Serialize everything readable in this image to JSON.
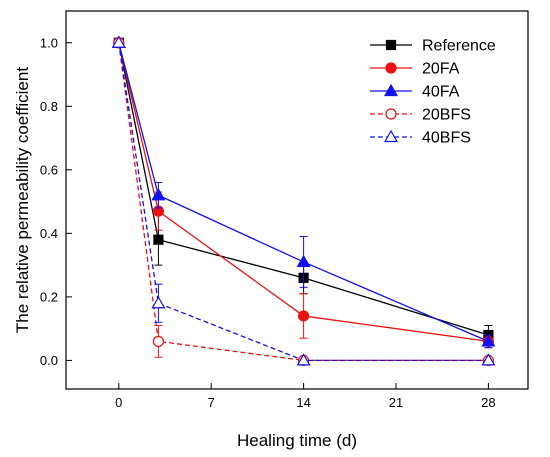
{
  "chart_data": {
    "type": "line",
    "title": "",
    "xlabel": "Healing time (d)",
    "ylabel": "The relative permeability coefficient",
    "xlim": [
      -4,
      31
    ],
    "ylim": [
      -0.09,
      1.1
    ],
    "xticks": [
      0,
      7,
      14,
      21,
      28
    ],
    "yticks": [
      0.0,
      0.2,
      0.4,
      0.6,
      0.8,
      1.0
    ],
    "grid": false,
    "legend_position": "top-right",
    "series": [
      {
        "name": "Reference",
        "color": "#000000",
        "dash": "solid",
        "marker": "square-filled",
        "x": [
          0,
          3,
          14,
          28
        ],
        "y": [
          1.0,
          0.38,
          0.26,
          0.08
        ],
        "err": [
          0,
          0.08,
          0.05,
          0.03
        ]
      },
      {
        "name": "20FA",
        "color": "#ee1111",
        "dash": "solid",
        "marker": "circle-filled",
        "x": [
          0,
          3,
          14,
          28
        ],
        "y": [
          1.0,
          0.47,
          0.14,
          0.06
        ],
        "err": [
          0,
          0.06,
          0.07,
          0.02
        ]
      },
      {
        "name": "40FA",
        "color": "#1111ee",
        "dash": "solid",
        "marker": "triangle-filled",
        "x": [
          0,
          3,
          14,
          28
        ],
        "y": [
          1.0,
          0.52,
          0.31,
          0.06
        ],
        "err": [
          0,
          0.04,
          0.08,
          0.02
        ]
      },
      {
        "name": "20BFS",
        "color": "#ee1111",
        "dash": "dashed",
        "marker": "circle-open",
        "x": [
          0,
          3,
          14,
          28
        ],
        "y": [
          1.0,
          0.06,
          0.0,
          0.0
        ],
        "err": [
          0,
          0.05,
          0,
          0
        ]
      },
      {
        "name": "40BFS",
        "color": "#1111ee",
        "dash": "dashed",
        "marker": "triangle-open",
        "x": [
          0,
          3,
          14,
          28
        ],
        "y": [
          1.0,
          0.18,
          0.0,
          0.0
        ],
        "err": [
          0,
          0.06,
          0,
          0
        ]
      }
    ]
  }
}
